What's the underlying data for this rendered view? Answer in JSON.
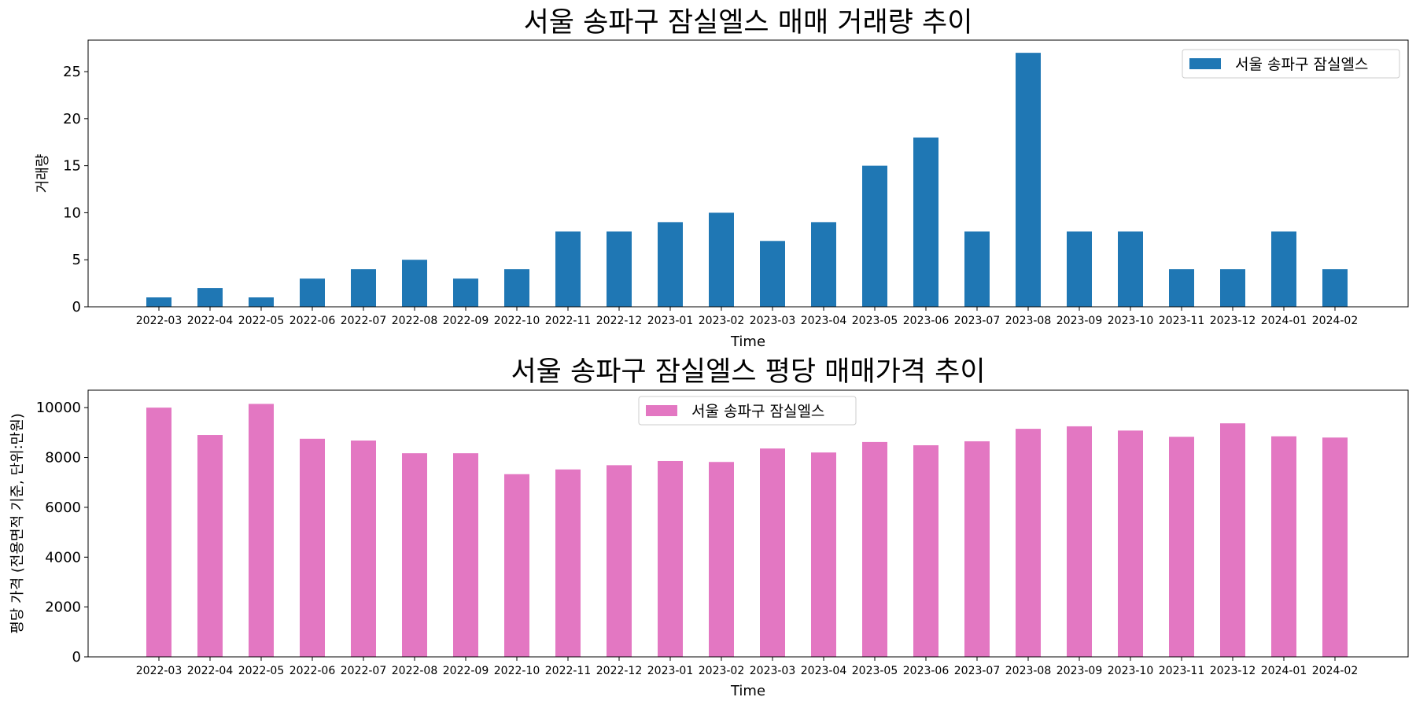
{
  "chart_data": [
    {
      "type": "bar",
      "title": "서울 송파구 잠실엘스 매매 거래량 추이",
      "xlabel": "Time",
      "ylabel": "거래량",
      "ylim": [
        0,
        28.35
      ],
      "yticks": [
        0,
        5,
        10,
        15,
        20,
        25
      ],
      "legend_position": "top-right",
      "grid": false,
      "categories": [
        "2022-03",
        "2022-04",
        "2022-05",
        "2022-06",
        "2022-07",
        "2022-08",
        "2022-09",
        "2022-10",
        "2022-11",
        "2022-12",
        "2023-01",
        "2023-02",
        "2023-03",
        "2023-04",
        "2023-05",
        "2023-06",
        "2023-07",
        "2023-08",
        "2023-09",
        "2023-10",
        "2023-11",
        "2023-12",
        "2024-01",
        "2024-02"
      ],
      "series": [
        {
          "name": "서울 송파구 잠실엘스",
          "color": "#1f77b4",
          "values": [
            1,
            2,
            1,
            3,
            4,
            5,
            3,
            4,
            8,
            8,
            9,
            10,
            7,
            9,
            15,
            18,
            8,
            27,
            8,
            8,
            4,
            4,
            8,
            4
          ]
        }
      ]
    },
    {
      "type": "bar",
      "title": "서울 송파구 잠실엘스 평당 매매가격 추이",
      "xlabel": "Time",
      "ylabel": "평당 가격 (전용면적 기준, 단위:만원)",
      "ylim": [
        0,
        10700
      ],
      "yticks": [
        0,
        2000,
        4000,
        6000,
        8000,
        10000
      ],
      "legend_position": "top-center",
      "grid": false,
      "categories": [
        "2022-03",
        "2022-04",
        "2022-05",
        "2022-06",
        "2022-07",
        "2022-08",
        "2022-09",
        "2022-10",
        "2022-11",
        "2022-12",
        "2023-01",
        "2023-02",
        "2023-03",
        "2023-04",
        "2023-05",
        "2023-06",
        "2023-07",
        "2023-08",
        "2023-09",
        "2023-10",
        "2023-11",
        "2023-12",
        "2024-01",
        "2024-02"
      ],
      "series": [
        {
          "name": "서울 송파구 잠실엘스",
          "color": "#e377c2",
          "values": [
            10000,
            8900,
            10150,
            8750,
            8680,
            8170,
            8170,
            7330,
            7520,
            7690,
            7860,
            7820,
            8360,
            8200,
            8620,
            8490,
            8650,
            9150,
            9250,
            9080,
            8830,
            9370,
            8850,
            8800
          ]
        }
      ]
    }
  ]
}
